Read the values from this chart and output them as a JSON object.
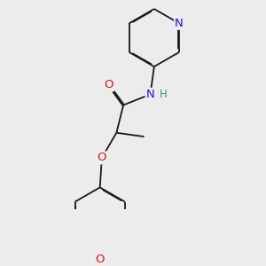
{
  "background_color": "#ececec",
  "bond_color": "#1a1a1a",
  "bond_width": 1.3,
  "dbo": 0.018,
  "atom_colors": {
    "N_pyridine": "#1a1acc",
    "N_amide": "#1a1acc",
    "O_carbonyl": "#cc1a1a",
    "O_ether": "#cc1a1a",
    "O_methoxy": "#cc1a1a",
    "H": "#3a9090"
  },
  "font_size": 8.5,
  "fig_size": [
    3.0,
    3.0
  ],
  "dpi": 100,
  "xlim": [
    -1.2,
    2.8
  ],
  "ylim": [
    -3.2,
    2.2
  ]
}
